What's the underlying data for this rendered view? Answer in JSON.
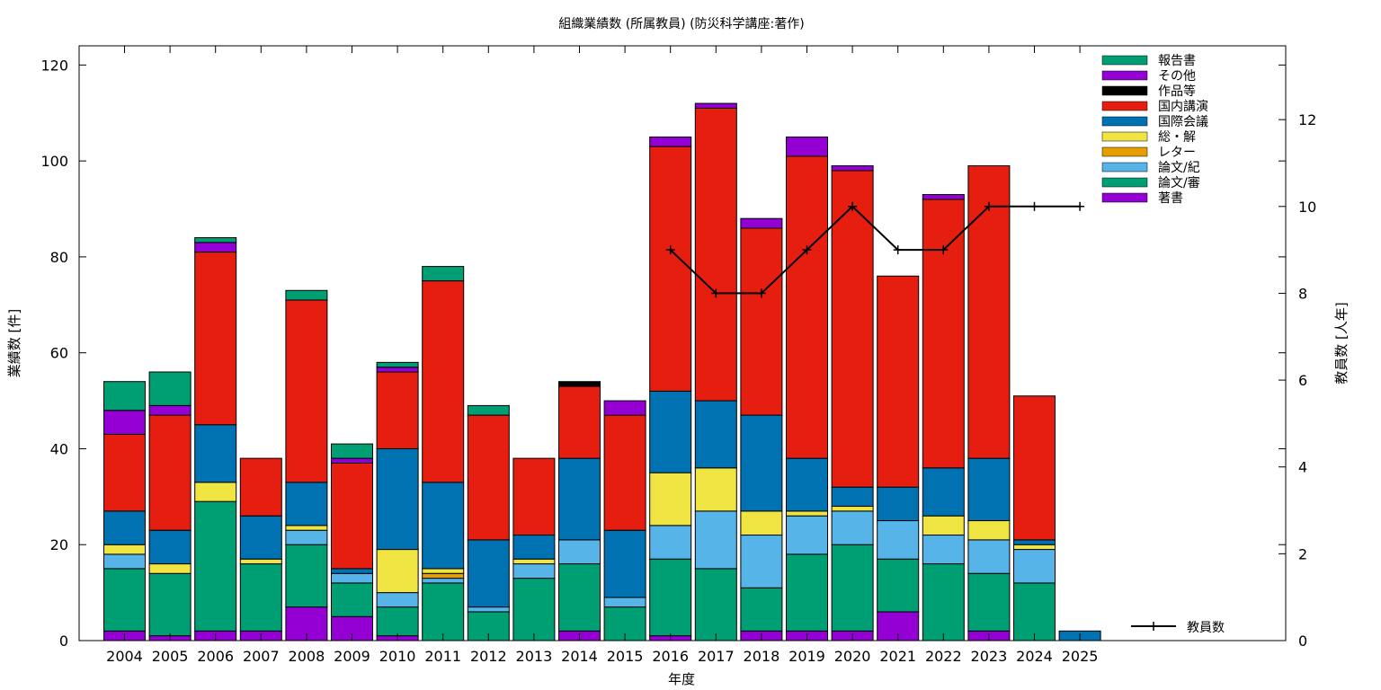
{
  "chart_data": {
    "type": "bar",
    "stacked": true,
    "title": "組織業績数 (所属教員) (防災科学講座:著作)",
    "xlabel": "年度",
    "ylabel": "業績数 [件]",
    "y2label": "教員数 [人年]",
    "ylim": [
      0,
      124
    ],
    "y2lim": [
      0,
      13.7
    ],
    "yticks": [
      0,
      20,
      40,
      60,
      80,
      100,
      120
    ],
    "y2ticks": [
      0,
      2,
      4,
      6,
      8,
      10,
      12
    ],
    "categories": [
      "2004",
      "2005",
      "2006",
      "2007",
      "2008",
      "2009",
      "2010",
      "2011",
      "2012",
      "2013",
      "2014",
      "2015",
      "2016",
      "2017",
      "2018",
      "2019",
      "2020",
      "2021",
      "2022",
      "2023",
      "2024",
      "2025"
    ],
    "series": [
      {
        "name": "著書",
        "color": "#9400d3",
        "values": [
          2,
          1,
          2,
          2,
          7,
          5,
          1,
          0,
          0,
          0,
          2,
          0,
          1,
          0,
          2,
          2,
          2,
          6,
          0,
          2,
          0,
          0
        ]
      },
      {
        "name": "論文/審",
        "color": "#009e73",
        "values": [
          13,
          13,
          27,
          14,
          13,
          7,
          6,
          12,
          6,
          13,
          14,
          7,
          16,
          15,
          9,
          16,
          18,
          11,
          16,
          12,
          12,
          0
        ]
      },
      {
        "name": "論文/紀",
        "color": "#56b4e9",
        "values": [
          3,
          0,
          0,
          0,
          3,
          2,
          3,
          1,
          1,
          3,
          5,
          2,
          7,
          12,
          11,
          8,
          7,
          8,
          6,
          7,
          7,
          0
        ]
      },
      {
        "name": "レター",
        "color": "#e69f00",
        "values": [
          0,
          0,
          0,
          0,
          0,
          0,
          0,
          1,
          0,
          0,
          0,
          0,
          0,
          0,
          0,
          0,
          0,
          0,
          0,
          0,
          0,
          0
        ]
      },
      {
        "name": "総・解",
        "color": "#f0e442",
        "values": [
          2,
          2,
          4,
          1,
          1,
          0,
          9,
          1,
          0,
          1,
          0,
          0,
          11,
          9,
          5,
          1,
          1,
          0,
          4,
          4,
          1,
          0
        ]
      },
      {
        "name": "国際会議",
        "color": "#0072b2",
        "values": [
          7,
          7,
          12,
          9,
          9,
          1,
          21,
          18,
          14,
          5,
          17,
          14,
          17,
          14,
          20,
          11,
          4,
          7,
          10,
          13,
          1,
          2
        ]
      },
      {
        "name": "国内講演",
        "color": "#e51e10",
        "values": [
          16,
          24,
          36,
          12,
          38,
          22,
          16,
          42,
          26,
          16,
          15,
          24,
          51,
          61,
          39,
          63,
          66,
          44,
          56,
          61,
          30,
          0
        ]
      },
      {
        "name": "作品等",
        "color": "#000000",
        "values": [
          0,
          0,
          0,
          0,
          0,
          0,
          0,
          0,
          0,
          0,
          1,
          0,
          0,
          0,
          0,
          0,
          0,
          0,
          0,
          0,
          0,
          0
        ]
      },
      {
        "name": "その他",
        "color": "#9400d3",
        "values": [
          5,
          2,
          2,
          0,
          0,
          1,
          1,
          0,
          0,
          0,
          0,
          3,
          2,
          1,
          2,
          4,
          1,
          0,
          1,
          0,
          0,
          0
        ]
      },
      {
        "name": "報告書",
        "color": "#009e73",
        "values": [
          6,
          7,
          1,
          0,
          2,
          3,
          1,
          3,
          2,
          0,
          0,
          0,
          0,
          0,
          0,
          0,
          0,
          0,
          0,
          0,
          0,
          0
        ]
      }
    ],
    "line": {
      "name": "教員数",
      "color": "#000000",
      "x": [
        "2016",
        "2017",
        "2018",
        "2019",
        "2020",
        "2021",
        "2022",
        "2023",
        "2024",
        "2025"
      ],
      "values": [
        9,
        8,
        8,
        9,
        10,
        9,
        9,
        10,
        10,
        10
      ]
    },
    "legend_position": "top-right"
  }
}
